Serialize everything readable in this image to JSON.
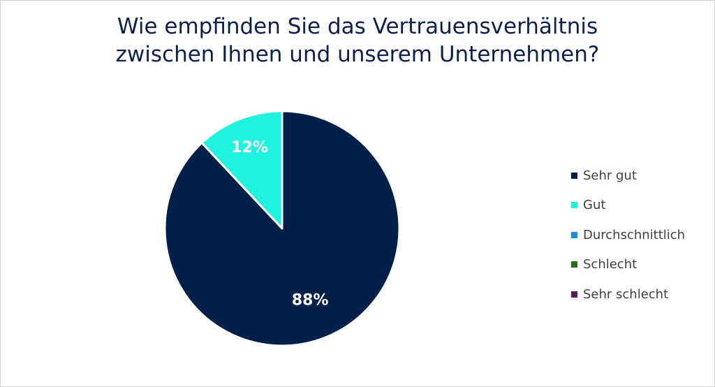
{
  "chart_data": {
    "type": "pie",
    "title_lines": [
      "Wie empfinden Sie das Vertrauensverhältnis",
      "zwischen Ihnen und unserem Unternehmen?"
    ],
    "categories": [
      "Sehr gut",
      "Gut",
      "Durchschnittlich",
      "Schlecht",
      "Sehr schlecht"
    ],
    "values": [
      88,
      12,
      0,
      0,
      0
    ],
    "data_labels": [
      "88%",
      "12%",
      "",
      "",
      ""
    ],
    "colors": [
      "#00204a",
      "#1ff2de",
      "#1b8fd2",
      "#2e6b1e",
      "#5a1a58"
    ],
    "legend_position": "right"
  }
}
